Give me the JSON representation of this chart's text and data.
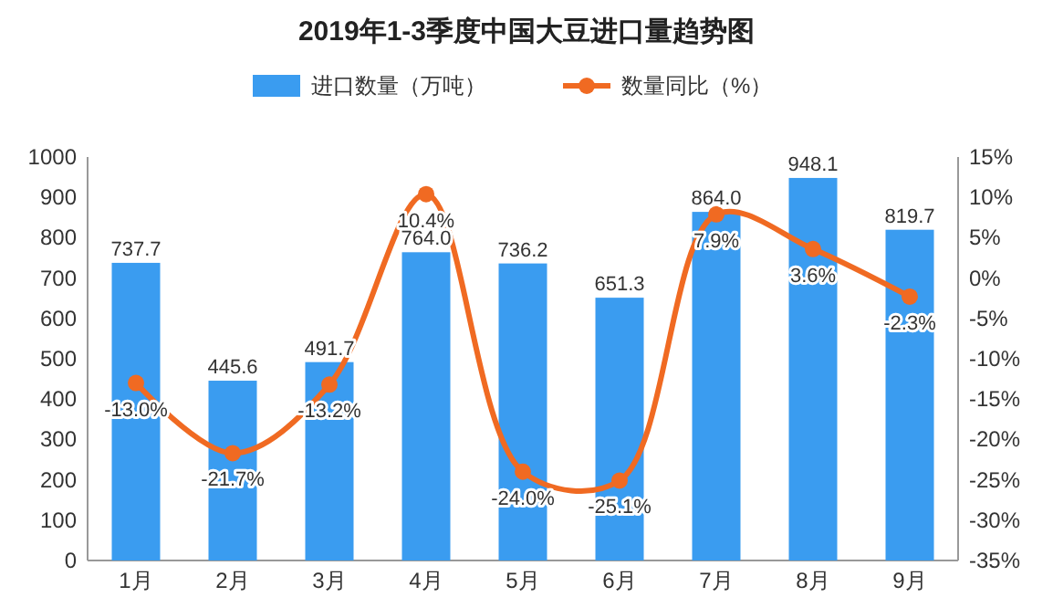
{
  "chart_data": {
    "type": "bar",
    "title": "2019年1-3季度中国大豆进口量趋势图",
    "categories": [
      "1月",
      "2月",
      "3月",
      "4月",
      "5月",
      "6月",
      "7月",
      "8月",
      "9月"
    ],
    "series": [
      {
        "name": "进口数量（万吨）",
        "color": "#3a9cf0",
        "values": [
          737.7,
          445.6,
          491.7,
          764.0,
          736.2,
          651.3,
          864.0,
          948.1,
          819.7
        ],
        "value_labels": [
          "737.7",
          "445.6",
          "491.7",
          "764.0",
          "736.2",
          "651.3",
          "864.0",
          "948.1",
          "819.7"
        ]
      },
      {
        "name": "数量同比（%）",
        "type": "line",
        "axis": "y2",
        "color": "#f06a22",
        "marker": "circle",
        "values": [
          -13.0,
          -21.7,
          -13.2,
          10.4,
          -24.0,
          -25.1,
          7.9,
          3.6,
          -2.3
        ],
        "value_labels": [
          "-13.0%",
          "-21.7%",
          "-13.2%",
          "10.4%",
          "-24.0%",
          "-25.1%",
          "7.9%",
          "3.6%",
          "-2.3%"
        ]
      }
    ],
    "ylim": [
      0,
      1000
    ],
    "yticks": [
      0,
      100,
      200,
      300,
      400,
      500,
      600,
      700,
      800,
      900,
      1000
    ],
    "y2lim": [
      -35,
      15
    ],
    "y2ticks": [
      {
        "value": -35,
        "label": "-35%"
      },
      {
        "value": -30,
        "label": "-30%"
      },
      {
        "value": -25,
        "label": "-25%"
      },
      {
        "value": -20,
        "label": "-20%"
      },
      {
        "value": -15,
        "label": "-15%"
      },
      {
        "value": -10,
        "label": "-10%"
      },
      {
        "value": -5,
        "label": "-5%"
      },
      {
        "value": 0,
        "label": "0%"
      },
      {
        "value": 5,
        "label": "5%"
      },
      {
        "value": 10,
        "label": "10%"
      },
      {
        "value": 15,
        "label": "15%"
      }
    ],
    "legend": "top"
  }
}
